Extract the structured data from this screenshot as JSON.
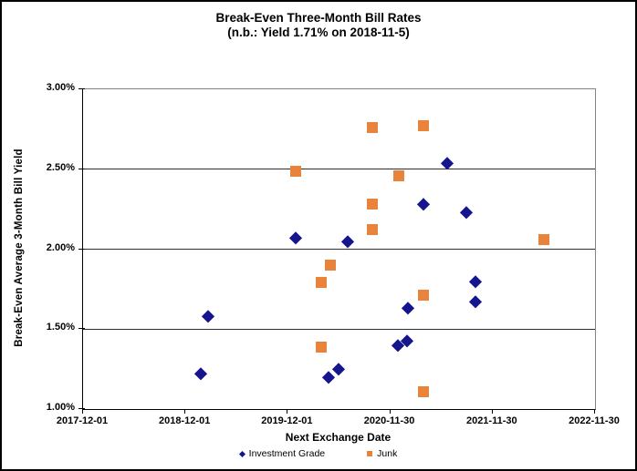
{
  "chart_data": {
    "type": "scatter",
    "title": "Break-Even Three-Month Bill Rates",
    "subtitle": "(n.b.: Yield 1.71% on 2018-11-5)",
    "xlabel": "Next Exchange Date",
    "ylabel": "Break-Even Average 3-Month Bill Yield",
    "x_range": [
      "2017-12-01",
      "2022-11-30"
    ],
    "x_tick_labels": [
      "2017-12-01",
      "2018-12-01",
      "2019-12-01",
      "2020-11-30",
      "2021-11-30",
      "2022-11-30"
    ],
    "y_ticks": [
      {
        "label": "3.00%",
        "value": 3.0
      },
      {
        "label": "2.50%",
        "value": 2.5
      },
      {
        "label": "2.00%",
        "value": 2.0
      },
      {
        "label": "1.50%",
        "value": 1.5
      },
      {
        "label": "1.00%",
        "value": 1.0
      }
    ],
    "y_gridlines": [
      2.5,
      2.0,
      1.5
    ],
    "ylim": [
      1.0,
      3.0
    ],
    "grid": "horizontal-only",
    "legend_position": "bottom-center",
    "colors": {
      "investment_grade": "#15158E",
      "junk": "#E8833C",
      "gridline": "#2e2e2e",
      "plot_border": "#848484"
    },
    "series": [
      {
        "name": "Investment Grade",
        "marker": "diamond",
        "color": "#15158E",
        "points": [
          {
            "date": "2019-01-25",
            "value": 1.22
          },
          {
            "date": "2019-02-20",
            "value": 1.58
          },
          {
            "date": "2019-12-28",
            "value": 2.07
          },
          {
            "date": "2020-04-24",
            "value": 1.2
          },
          {
            "date": "2020-05-30",
            "value": 1.25
          },
          {
            "date": "2020-06-30",
            "value": 2.05
          },
          {
            "date": "2020-12-26",
            "value": 1.4
          },
          {
            "date": "2021-01-28",
            "value": 1.43
          },
          {
            "date": "2021-02-01",
            "value": 1.63
          },
          {
            "date": "2021-03-30",
            "value": 2.28
          },
          {
            "date": "2021-06-22",
            "value": 2.54
          },
          {
            "date": "2021-08-27",
            "value": 2.23
          },
          {
            "date": "2021-09-29",
            "value": 1.67
          },
          {
            "date": "2021-09-29",
            "value": 1.8
          }
        ]
      },
      {
        "name": "Junk",
        "marker": "square",
        "color": "#E8833C",
        "points": [
          {
            "date": "2019-12-28",
            "value": 2.49
          },
          {
            "date": "2020-03-30",
            "value": 1.79
          },
          {
            "date": "2020-03-30",
            "value": 1.39
          },
          {
            "date": "2020-04-29",
            "value": 1.9
          },
          {
            "date": "2020-09-27",
            "value": 2.76
          },
          {
            "date": "2020-09-28",
            "value": 2.28
          },
          {
            "date": "2020-09-28",
            "value": 2.12
          },
          {
            "date": "2020-12-29",
            "value": 2.46
          },
          {
            "date": "2021-03-30",
            "value": 2.77
          },
          {
            "date": "2021-03-30",
            "value": 1.71
          },
          {
            "date": "2021-03-30",
            "value": 1.11
          },
          {
            "date": "2022-05-31",
            "value": 2.06
          }
        ]
      }
    ]
  }
}
